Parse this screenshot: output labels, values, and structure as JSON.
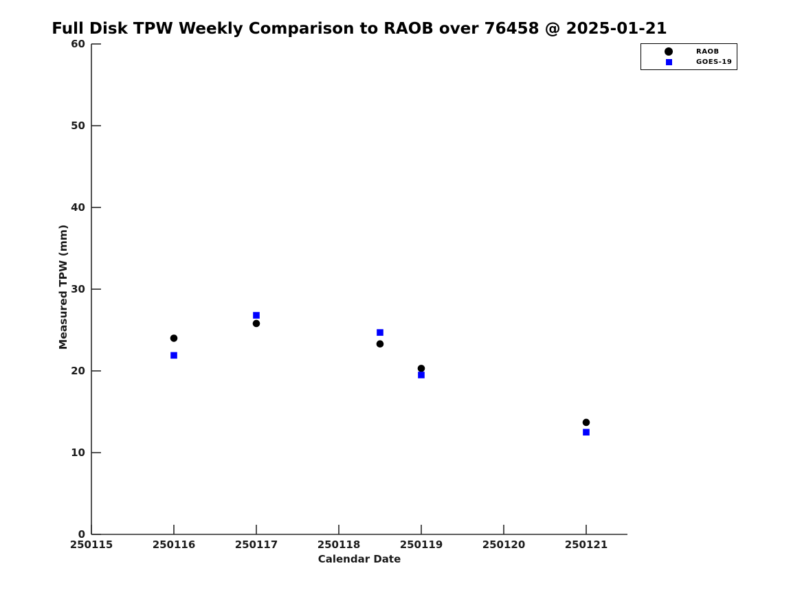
{
  "chart_data": {
    "type": "scatter",
    "title": "Full Disk TPW Weekly Comparison to RAOB over 76458 @ 2025-01-21",
    "xlabel": "Calendar Date",
    "ylabel": "Measured TPW (mm)",
    "xlim": [
      250115,
      250121.5
    ],
    "ylim": [
      0,
      60
    ],
    "x_ticks": [
      250115,
      250116,
      250117,
      250118,
      250119,
      250120,
      250121
    ],
    "y_ticks": [
      0,
      10,
      20,
      30,
      40,
      50,
      60
    ],
    "grid": false,
    "legend_position": "top-right",
    "axis_color": "#262626",
    "series": [
      {
        "name": "RAOB",
        "marker": "circle",
        "color": "#000000",
        "x": [
          250116,
          250117,
          250118.5,
          250119,
          250121
        ],
        "y": [
          24.0,
          25.8,
          23.3,
          20.3,
          13.7
        ]
      },
      {
        "name": "GOES-19",
        "marker": "square",
        "color": "#0000ff",
        "x": [
          250116,
          250117,
          250118.5,
          250119,
          250121
        ],
        "y": [
          21.9,
          26.8,
          24.7,
          19.5,
          12.5
        ]
      }
    ]
  }
}
